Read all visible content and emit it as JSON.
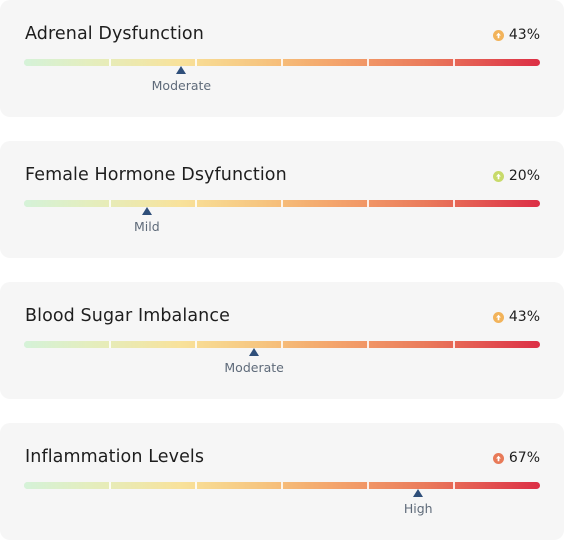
{
  "cards": [
    {
      "title": "Adrenal Dysfunction",
      "percent": "43%",
      "level": "Moderate",
      "level_fraction": 0.305,
      "badge_color": "#f2b35a"
    },
    {
      "title": "Female Hormone Dsyfunction",
      "percent": "20%",
      "level": "Mild",
      "level_fraction": 0.238,
      "badge_color": "#c8da6a"
    },
    {
      "title": "Blood Sugar Imbalance",
      "percent": "43%",
      "level": "Moderate",
      "level_fraction": 0.446,
      "badge_color": "#f2b35a"
    },
    {
      "title": "Inflammation Levels",
      "percent": "67%",
      "level": "High",
      "level_fraction": 0.764,
      "badge_color": "#e87a58"
    }
  ],
  "icons": {
    "badge": "arrow-up-icon",
    "marker": "triangle-up-icon"
  },
  "scale_segments": 6
}
